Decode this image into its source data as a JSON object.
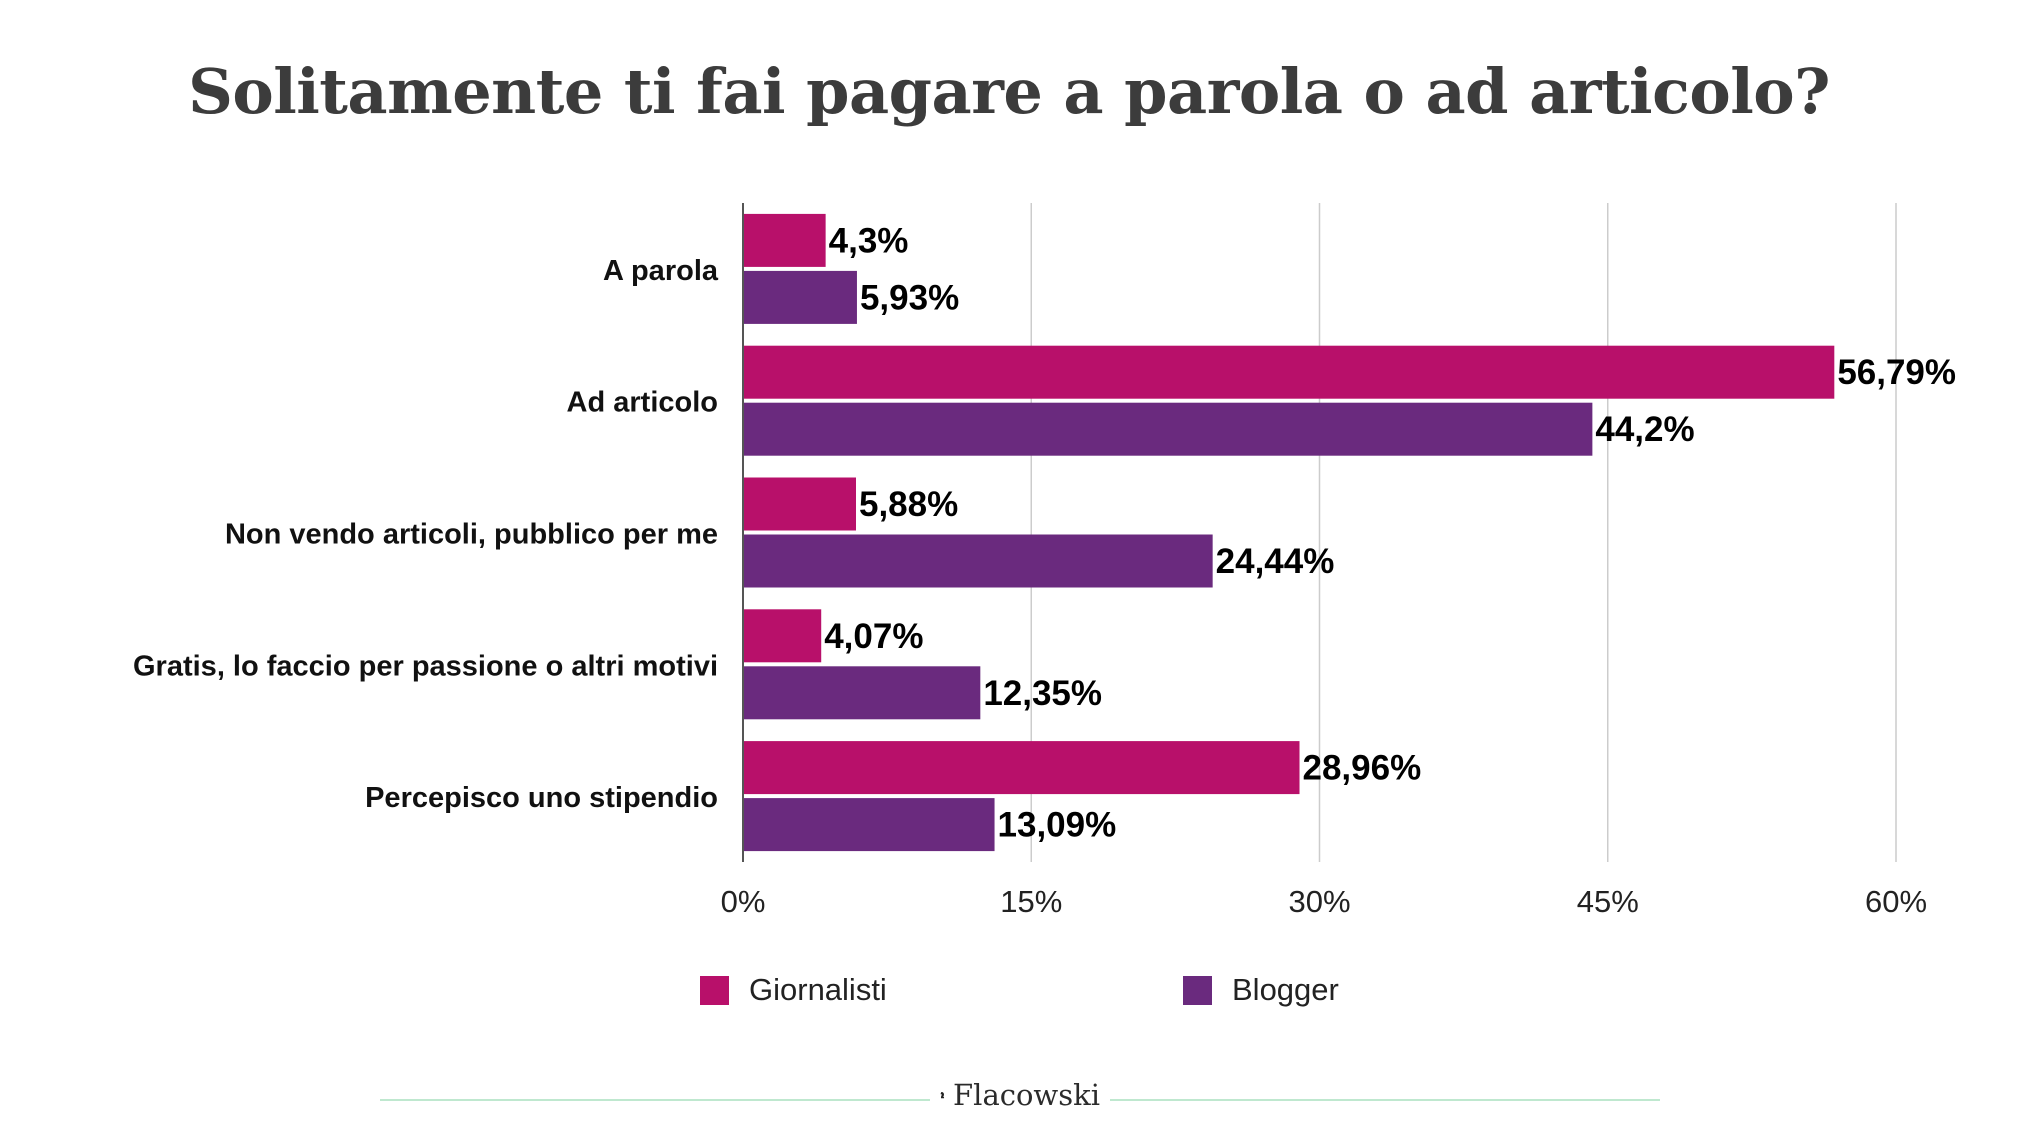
{
  "title": "Solitamente ti fai pagare a parola o ad articolo?",
  "colors": {
    "giornalisti": "#b8106a",
    "blogger": "#6a2a7e",
    "grid": "#cccccc",
    "axis": "#555555"
  },
  "legend": [
    {
      "label": "Giornalisti",
      "color": "#b8106a"
    },
    {
      "label": "Blogger",
      "color": "#6a2a7e"
    }
  ],
  "brand": {
    "name": "Flacowski",
    "icon": "chess-knight-icon"
  },
  "chart_data": {
    "type": "bar",
    "orientation": "horizontal",
    "title": "Solitamente ti fai pagare a parola o ad articolo?",
    "categories": [
      "A parola",
      "Ad articolo",
      "Non vendo articoli, pubblico per me",
      "Gratis, lo faccio per passione o altri motivi",
      "Percepisco uno stipendio"
    ],
    "series": [
      {
        "name": "Giornalisti",
        "values": [
          4.3,
          56.79,
          5.88,
          4.07,
          28.96
        ],
        "labels": [
          "4,3%",
          "56,79%",
          "5,88%",
          "4,07%",
          "28,96%"
        ]
      },
      {
        "name": "Blogger",
        "values": [
          5.93,
          44.2,
          24.44,
          12.35,
          13.09
        ],
        "labels": [
          "5,93%",
          "44,2%",
          "24,44%",
          "12,35%",
          "13,09%"
        ]
      }
    ],
    "xlim": [
      0,
      60
    ],
    "xticks": [
      0,
      15,
      30,
      45,
      60
    ],
    "xtick_labels": [
      "0%",
      "15%",
      "30%",
      "45%",
      "60%"
    ],
    "grid": true,
    "legend_position": "bottom"
  }
}
